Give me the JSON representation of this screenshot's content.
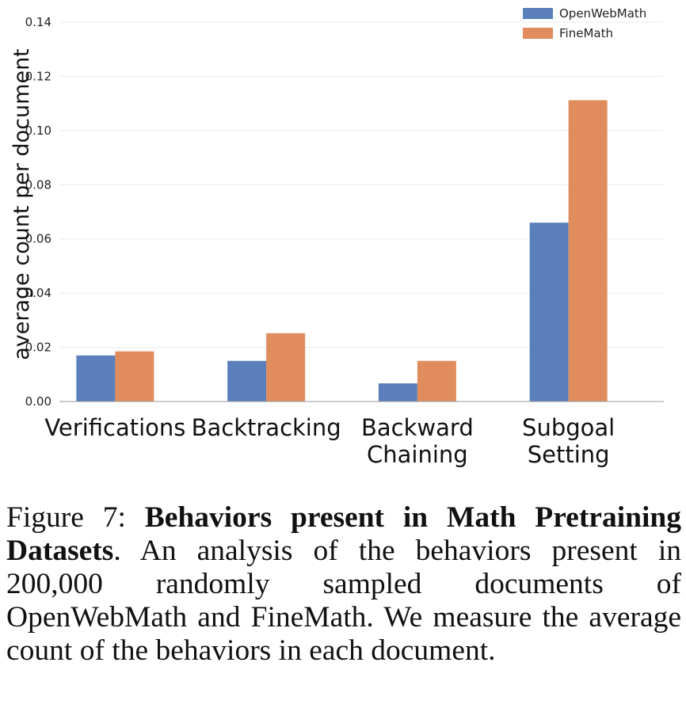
{
  "chart_data": {
    "type": "bar",
    "categories": [
      [
        "Verifications"
      ],
      [
        "Backtracking"
      ],
      [
        "Backward",
        "Chaining"
      ],
      [
        "Subgoal",
        "Setting"
      ]
    ],
    "series": [
      {
        "name": "OpenWebMath",
        "color": "#5b7fbb",
        "values": [
          0.017,
          0.015,
          0.0067,
          0.066
        ]
      },
      {
        "name": "FineMath",
        "color": "#e08c5c",
        "values": [
          0.0185,
          0.0252,
          0.015,
          0.1112
        ]
      }
    ],
    "ylabel": "average count per document",
    "xlabel": "",
    "ylim": [
      0,
      0.14
    ],
    "yticks": [
      "0.00",
      "0.02",
      "0.04",
      "0.06",
      "0.08",
      "0.10",
      "0.12",
      "0.14"
    ],
    "grid": true,
    "legend": "top-right"
  },
  "caption": {
    "label": "Figure 7: ",
    "title": "Behaviors present in Math Pretraining Datasets",
    "body": ". An analysis of the behaviors present in 200,000 randomly sampled documents of OpenWebMath and FineMath. We measure the average count of the behaviors in each document."
  }
}
